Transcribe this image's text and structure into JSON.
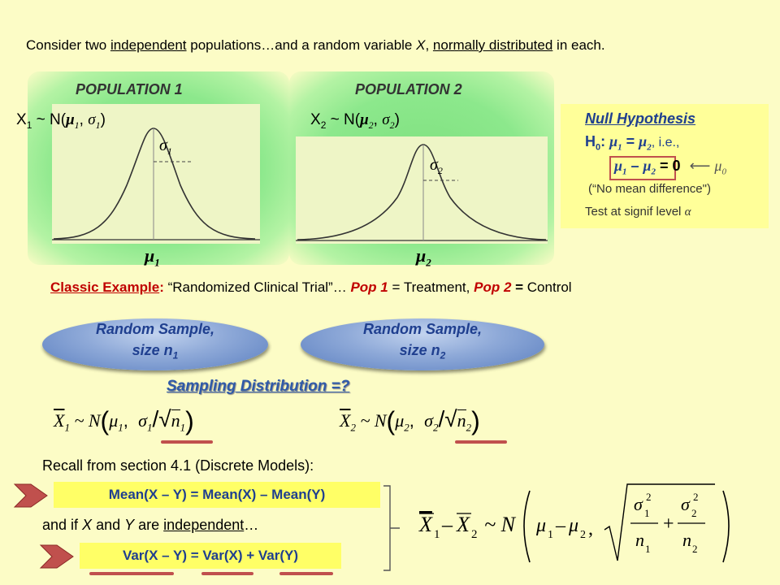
{
  "intro": {
    "t1": "Consider two ",
    "t2": "independent",
    "t3": " populations…and a random variable ",
    "t4": "X",
    "t5": ", ",
    "t6": "normally distributed",
    "t7": " in each."
  },
  "pop1": {
    "title": "POPULATION 1",
    "eq_var": "X",
    "eq_sub": "1",
    "eq_mid": " ~ N(",
    "mu": "μ",
    "mu_sub": "1",
    "comma": ", ",
    "sigma": "σ",
    "sigma_sub": "1",
    "close": ")",
    "sd_label": "σ",
    "sd_sub": "1",
    "mean_label": "μ",
    "mean_sub": "1"
  },
  "pop2": {
    "title": "POPULATION 2",
    "eq_var": "X",
    "eq_sub": "2",
    "eq_mid": " ~ N(",
    "mu": "μ",
    "mu_sub": "2",
    "comma": ", ",
    "sigma": "σ",
    "sigma_sub": "2",
    "close": ")",
    "sd_label": "σ",
    "sd_sub": "2",
    "mean_label": "μ",
    "mean_sub": "2"
  },
  "null": {
    "title": "Null Hypothesis",
    "h": "H",
    "h_sub": "0",
    "colon": ":",
    "mu1": "μ",
    "mu1_sub": "1",
    "eq": " = ",
    "mu2": "μ",
    "mu2_sub": "2",
    "ie": ",  i.e.,",
    "diff_mu1": "μ",
    "diff_sub1": "1",
    "minus": " – ",
    "diff_mu2": "μ",
    "diff_sub2": "2",
    "eq_zero": " = 0",
    "arrow": "⟵",
    "mu0": "μ",
    "mu0_sub": "0",
    "quote": "(“No mean difference\")",
    "test": "Test at signif level ",
    "alpha": "α"
  },
  "classic": {
    "label": "Classic Example",
    "colon": ":",
    "t1": "  “Randomized Clinical Trial”… ",
    "pop1": "Pop 1",
    "t2": " = Treatment, ",
    "pop2": "Pop 2",
    "t3": " = ",
    "t4": "Control"
  },
  "sample1": {
    "line1": "Random Sample,",
    "line2": "size n",
    "sub": "1"
  },
  "sample2": {
    "line1": "Random Sample,",
    "line2": "size n",
    "sub": "2"
  },
  "sampling_dist": "Sampling Distribution =?",
  "formula1": {
    "xbar": "X",
    "sub": "1",
    "n": " ~ N",
    "mu": "μ",
    "mu_sub": "1",
    "sigma": "σ",
    "sigma_sub": "1",
    "nn": "n",
    "nn_sub": "1"
  },
  "formula2": {
    "xbar": "X",
    "sub": "2",
    "n": " ~ N",
    "mu": "μ",
    "mu_sub": "2",
    "sigma": "σ",
    "sigma_sub": "2",
    "nn": "n",
    "nn_sub": "2"
  },
  "recall": "Recall from section 4.1 (Discrete Models):",
  "mean_rule": "Mean(X – Y) = Mean(X) – Mean(Y)",
  "and_if": {
    "t1": "and if ",
    "x": "X",
    "t2": " and ",
    "y": "Y",
    "t3": " are ",
    "ind": "independent",
    "t4": "…"
  },
  "var_rule": "Var(X – Y) = Var(X) + Var(Y)",
  "colors": {
    "background": "#fcfcc6",
    "green_glow": "#8ce88c",
    "null_box": "#ffff99",
    "dark_red": "#c00000",
    "blue": "#1f3f8f",
    "red_bar": "#c0504d"
  }
}
